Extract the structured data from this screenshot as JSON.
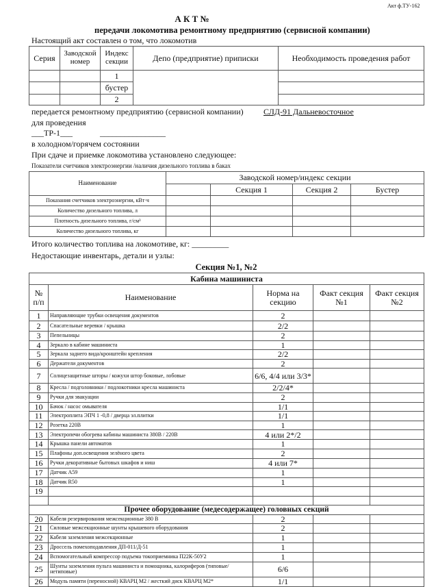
{
  "form_code": "Акт ф.ТУ-162",
  "title": "А К Т №",
  "subtitle": "передачи локомотива ремонтному предприятию (сервисной компании)",
  "intro": "Настоящий акт составлен о том, что локомотив",
  "loco_table": {
    "headers": [
      "Серия",
      "Заводской номер",
      "Индекс секции",
      "Депо (предприятие) приписки",
      "Необходимость проведения работ"
    ],
    "sections": [
      "1",
      "бустер",
      "2"
    ]
  },
  "transfer_text": "передается ремонтному предприятию (сервисной компании)",
  "company": "СЛД-91 Дальневосточное",
  "for_text": "для проведения",
  "repair_type": "___ТР-1___",
  "blank_line": "________________",
  "state_text": "в холодном/горячем состоянии",
  "established_text": "При сдаче и приемке локомотива установлено следующее:",
  "meters_caption": "Показатели счетчиков электроэнергии /наличия дизельного топлива в баках",
  "meters_table": {
    "name_header": "Наименование",
    "group_header": "Заводской номер/индекс секции",
    "col_headers": [
      "",
      "Секция 1",
      "Секция 2",
      "Бустер"
    ],
    "rows": [
      "Показания счетчиков электроэнергии, кВт·ч",
      "Количество дизельного топлива,   л",
      "Плотность дизельного топлива, г/см³",
      "Количество дизельного топлива,   кг"
    ]
  },
  "total_fuel": "Итого количество топлива на локомотиве, кг: _________",
  "missing_text": "Недостающие инвентарь, детали и узлы:",
  "section_title": "Секция №1, №2",
  "inventory": {
    "cabin_title": "Кабина машиниста",
    "headers": [
      "№ п/п",
      "Наименование",
      "Норма на секцию",
      "Факт секция №1",
      "Факт секция №2"
    ],
    "cabin_rows": [
      {
        "num": "1",
        "name": "Направляющие трубки освещения документов",
        "norm": "2"
      },
      {
        "num": "2",
        "name": "Спасательные веревки / крышка",
        "norm": "2/2"
      },
      {
        "num": "3",
        "name": "Пепельницы",
        "norm": "2"
      },
      {
        "num": "4",
        "name": "Зеркало в кабине машиниста",
        "norm": "1"
      },
      {
        "num": "5",
        "name": "Зеркала заднего вида/кронштейн крепления",
        "norm": "2/2"
      },
      {
        "num": "6",
        "name": "Держатели документов",
        "norm": "2"
      },
      {
        "num": "7",
        "name": "Солнцезащитные шторы / кожухи штор боковые, лобовые",
        "norm": "6/6, 4/4 или 3/3*"
      },
      {
        "num": "8",
        "name": "Кресла / подголовники / подлокотники кресла машиниста",
        "norm": "2/2/4*"
      },
      {
        "num": "9",
        "name": "Ручки для эвакуации",
        "norm": "2"
      },
      {
        "num": "10",
        "name": "Бачок / насос омывателя",
        "norm": "1/1"
      },
      {
        "num": "11",
        "name": "Электроплита ЭПЧ 1 -0,8 / дверца эл.плитки",
        "norm": "1/1"
      },
      {
        "num": "12",
        "name": "Розетка 220В",
        "norm": "1"
      },
      {
        "num": "13",
        "name": "Электропечи обогрева кабины машиниста 380В / 220В",
        "norm": "4 или 2*/2"
      },
      {
        "num": "14",
        "name": "Крышка панели автоматов",
        "norm": "1"
      },
      {
        "num": "15",
        "name": "Плафоны доп.освещения зелёного цвета",
        "norm": "2"
      },
      {
        "num": "16",
        "name": "Ручки декоративные бытовых шкафов и ниш",
        "norm": "4 или 7*"
      },
      {
        "num": "17",
        "name": "Датчик А59",
        "norm": "1"
      },
      {
        "num": "18",
        "name": "Датчик R50",
        "norm": "1"
      },
      {
        "num": "19",
        "name": "",
        "norm": ""
      },
      {
        "num": "",
        "name": "",
        "norm": ""
      }
    ],
    "other_title": "Прочее оборудование (медесодержащее) головных секций",
    "other_rows": [
      {
        "num": "20",
        "name": "Кабеля резервирования межсекционные 380 В",
        "norm": "2"
      },
      {
        "num": "21",
        "name": "Силовые межсекционные шунты крышевого оборудования",
        "norm": "2"
      },
      {
        "num": "22",
        "name": "Кабеля заземления межсекционные",
        "norm": "1"
      },
      {
        "num": "23",
        "name": "Дроссель помехоподавления ДП-011/Д-51",
        "norm": "1"
      },
      {
        "num": "24",
        "name": "Вспомогательный компрессор подъема токоприемника П22К-50У2",
        "norm": "1"
      },
      {
        "num": "25",
        "name": "Шунты заземления пульта машиниста и помощника, калориферов (типовые/нетиповые)",
        "norm": "6/6"
      },
      {
        "num": "26",
        "name": "Модуль памяти (переносной) КВАРЦ М2 / жесткий диск КВАРЦ М2*",
        "norm": "1/1"
      }
    ]
  }
}
